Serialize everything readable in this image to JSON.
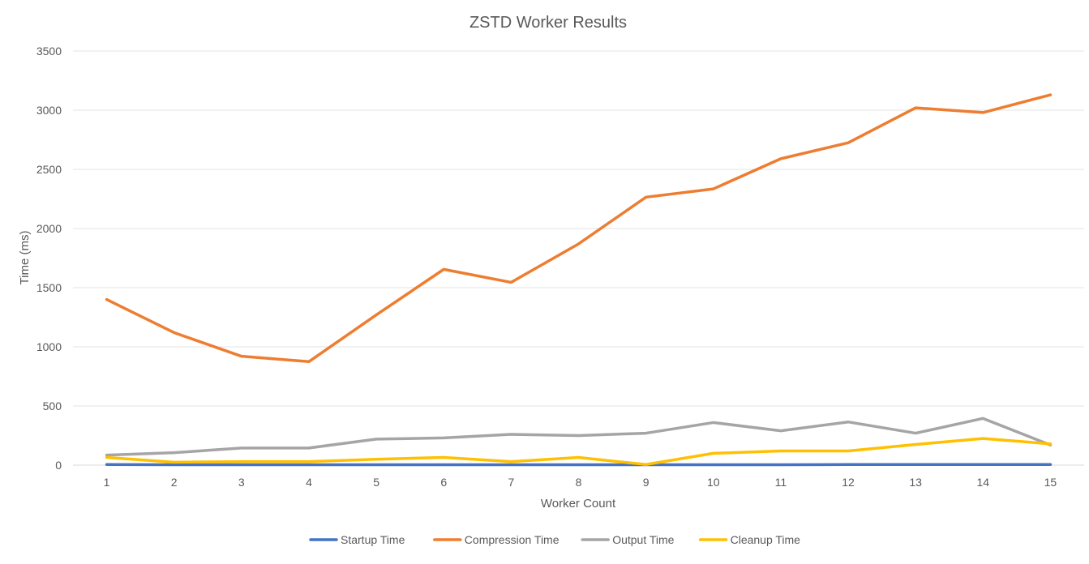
{
  "chart_data": {
    "type": "line",
    "title": "ZSTD Worker Results",
    "xlabel": "Worker Count",
    "ylabel": "Time (ms)",
    "ylim": [
      0,
      3500
    ],
    "yticks": [
      0,
      500,
      1000,
      1500,
      2000,
      2500,
      3000,
      3500
    ],
    "grid": true,
    "legend_position": "bottom",
    "categories": [
      "1",
      "2",
      "3",
      "4",
      "5",
      "6",
      "7",
      "8",
      "9",
      "10",
      "11",
      "12",
      "13",
      "14",
      "15"
    ],
    "series": [
      {
        "name": "Startup Time",
        "color": "#4472C4",
        "values": [
          5,
          3,
          3,
          3,
          3,
          3,
          3,
          3,
          3,
          3,
          3,
          5,
          5,
          5,
          5
        ]
      },
      {
        "name": "Compression Time",
        "color": "#ED7D31",
        "values": [
          1400,
          1120,
          920,
          875,
          1270,
          1655,
          1545,
          1870,
          2265,
          2335,
          2590,
          2725,
          3020,
          2980,
          3130
        ]
      },
      {
        "name": "Output Time",
        "color": "#A5A5A5",
        "values": [
          85,
          105,
          145,
          145,
          220,
          230,
          260,
          250,
          270,
          360,
          290,
          365,
          270,
          395,
          170
        ]
      },
      {
        "name": "Cleanup Time",
        "color": "#FFC000",
        "values": [
          65,
          25,
          30,
          30,
          50,
          65,
          30,
          65,
          5,
          100,
          120,
          120,
          175,
          225,
          180
        ]
      }
    ]
  }
}
